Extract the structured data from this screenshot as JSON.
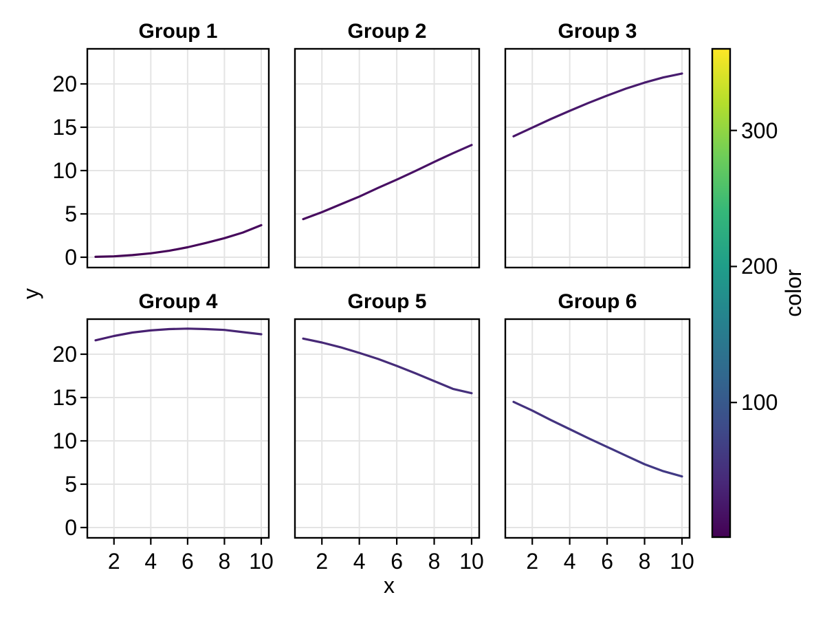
{
  "chart_data": {
    "type": "line",
    "layout": "facet-grid-2x3",
    "xlabel": "x",
    "ylabel": "y",
    "x": [
      1,
      2,
      3,
      4,
      5,
      6,
      7,
      8,
      9,
      10
    ],
    "facets": [
      {
        "title": "Group 1",
        "row": 0,
        "col": 0,
        "y": [
          0.05,
          0.1,
          0.25,
          0.45,
          0.75,
          1.15,
          1.65,
          2.2,
          2.85,
          3.7
        ],
        "color_start": "#440254",
        "color_end": "#470a5e"
      },
      {
        "title": "Group 2",
        "row": 0,
        "col": 1,
        "y": [
          4.4,
          5.2,
          6.1,
          7.0,
          8.0,
          8.95,
          9.95,
          11.0,
          12.0,
          12.95
        ],
        "color_start": "#470b5e",
        "color_end": "#481468"
      },
      {
        "title": "Group 3",
        "row": 0,
        "col": 2,
        "y": [
          13.95,
          14.95,
          15.95,
          16.9,
          17.8,
          18.65,
          19.45,
          20.15,
          20.75,
          21.2
        ],
        "color_start": "#481569",
        "color_end": "#481d6f"
      },
      {
        "title": "Group 4",
        "row": 1,
        "col": 0,
        "y": [
          21.6,
          22.1,
          22.5,
          22.75,
          22.9,
          22.95,
          22.9,
          22.8,
          22.55,
          22.3
        ],
        "color_start": "#481e70",
        "color_end": "#472775"
      },
      {
        "title": "Group 5",
        "row": 1,
        "col": 1,
        "y": [
          21.8,
          21.35,
          20.8,
          20.15,
          19.45,
          18.65,
          17.8,
          16.9,
          16.0,
          15.5
        ],
        "color_start": "#472876",
        "color_end": "#45307c"
      },
      {
        "title": "Group 6",
        "row": 1,
        "col": 2,
        "y": [
          14.5,
          13.5,
          12.4,
          11.35,
          10.3,
          9.3,
          8.3,
          7.3,
          6.5,
          5.9
        ],
        "color_start": "#44317d",
        "color_end": "#413a85"
      }
    ],
    "x_ticks": [
      2,
      4,
      6,
      8,
      10
    ],
    "y_ticks": [
      0,
      5,
      10,
      15,
      20
    ],
    "xlim": [
      0.55,
      10.45
    ],
    "ylim": [
      -1.35,
      24.05
    ],
    "grid": true,
    "grid_color": "#e4e4e4",
    "spine_color": "#000000",
    "background": "#ffffff",
    "colorbar": {
      "label": "color",
      "ticks": [
        100,
        200,
        300
      ],
      "range": [
        1,
        360
      ],
      "colormap": "viridis",
      "position": "right",
      "stops": [
        "#440154",
        "#482878",
        "#3e4a89",
        "#31688e",
        "#26828e",
        "#1f9e89",
        "#35b779",
        "#6dcd59",
        "#b4de2c",
        "#fde725"
      ]
    }
  }
}
